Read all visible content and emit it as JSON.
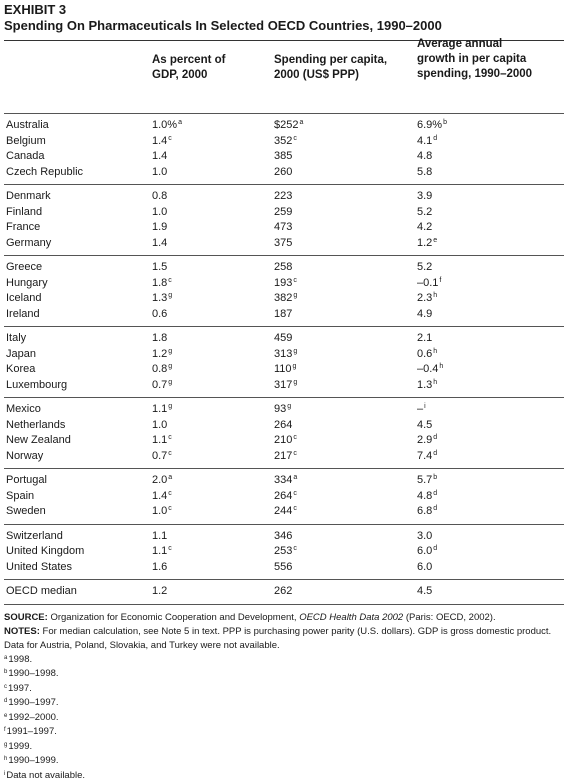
{
  "exhibit": "EXHIBIT 3",
  "title": "Spending On Pharmaceuticals In Selected OECD Countries, 1990–2000",
  "headers": {
    "col1": [
      "As percent of",
      "GDP, 2000"
    ],
    "col2": [
      "Spending per capita,",
      "2000 (US$ PPP)"
    ],
    "col3": [
      "Average annual",
      "growth in per capita",
      "spending, 1990–2000"
    ]
  },
  "groups": [
    [
      {
        "country": "Australia",
        "gdp": "1.0%",
        "gdp_note": "a",
        "spend": "$252",
        "spend_note": "a",
        "growth": "6.9%",
        "growth_note": "b"
      },
      {
        "country": "Belgium",
        "gdp": "1.4",
        "gdp_note": "c",
        "spend": "352",
        "spend_note": "c",
        "growth": "4.1",
        "growth_note": "d"
      },
      {
        "country": "Canada",
        "gdp": "1.4",
        "gdp_note": "",
        "spend": "385",
        "spend_note": "",
        "growth": "4.8",
        "growth_note": ""
      },
      {
        "country": "Czech Republic",
        "gdp": "1.0",
        "gdp_note": "",
        "spend": "260",
        "spend_note": "",
        "growth": "5.8",
        "growth_note": ""
      }
    ],
    [
      {
        "country": "Denmark",
        "gdp": "0.8",
        "gdp_note": "",
        "spend": "223",
        "spend_note": "",
        "growth": "3.9",
        "growth_note": ""
      },
      {
        "country": "Finland",
        "gdp": "1.0",
        "gdp_note": "",
        "spend": "259",
        "spend_note": "",
        "growth": "5.2",
        "growth_note": ""
      },
      {
        "country": "France",
        "gdp": "1.9",
        "gdp_note": "",
        "spend": "473",
        "spend_note": "",
        "growth": "4.2",
        "growth_note": ""
      },
      {
        "country": "Germany",
        "gdp": "1.4",
        "gdp_note": "",
        "spend": "375",
        "spend_note": "",
        "growth": "1.2",
        "growth_note": "e"
      }
    ],
    [
      {
        "country": "Greece",
        "gdp": "1.5",
        "gdp_note": "",
        "spend": "258",
        "spend_note": "",
        "growth": "5.2",
        "growth_note": ""
      },
      {
        "country": "Hungary",
        "gdp": "1.8",
        "gdp_note": "c",
        "spend": "193",
        "spend_note": "c",
        "growth": "–0.1",
        "growth_note": "f"
      },
      {
        "country": "Iceland",
        "gdp": "1.3",
        "gdp_note": "g",
        "spend": "382",
        "spend_note": "g",
        "growth": "2.3",
        "growth_note": "h"
      },
      {
        "country": "Ireland",
        "gdp": "0.6",
        "gdp_note": "",
        "spend": "187",
        "spend_note": "",
        "growth": "4.9",
        "growth_note": ""
      }
    ],
    [
      {
        "country": "Italy",
        "gdp": "1.8",
        "gdp_note": "",
        "spend": "459",
        "spend_note": "",
        "growth": "2.1",
        "growth_note": ""
      },
      {
        "country": "Japan",
        "gdp": "1.2",
        "gdp_note": "g",
        "spend": "313",
        "spend_note": "g",
        "growth": "0.6",
        "growth_note": "h"
      },
      {
        "country": "Korea",
        "gdp": "0.8",
        "gdp_note": "g",
        "spend": "110",
        "spend_note": "g",
        "growth": "–0.4",
        "growth_note": "h"
      },
      {
        "country": "Luxembourg",
        "gdp": "0.7",
        "gdp_note": "g",
        "spend": "317",
        "spend_note": "g",
        "growth": "1.3",
        "growth_note": "h"
      }
    ],
    [
      {
        "country": "Mexico",
        "gdp": "1.1",
        "gdp_note": "g",
        "spend": "93",
        "spend_note": "g",
        "growth": "–",
        "growth_note": "i"
      },
      {
        "country": "Netherlands",
        "gdp": "1.0",
        "gdp_note": "",
        "spend": "264",
        "spend_note": "",
        "growth": "4.5",
        "growth_note": ""
      },
      {
        "country": "New Zealand",
        "gdp": "1.1",
        "gdp_note": "c",
        "spend": "210",
        "spend_note": "c",
        "growth": "2.9",
        "growth_note": "d"
      },
      {
        "country": "Norway",
        "gdp": "0.7",
        "gdp_note": "c",
        "spend": "217",
        "spend_note": "c",
        "growth": "7.4",
        "growth_note": "d"
      }
    ],
    [
      {
        "country": "Portugal",
        "gdp": "2.0",
        "gdp_note": "a",
        "spend": "334",
        "spend_note": "a",
        "growth": "5.7",
        "growth_note": "b"
      },
      {
        "country": "Spain",
        "gdp": "1.4",
        "gdp_note": "c",
        "spend": "264",
        "spend_note": "c",
        "growth": "4.8",
        "growth_note": "d"
      },
      {
        "country": "Sweden",
        "gdp": "1.0",
        "gdp_note": "c",
        "spend": "244",
        "spend_note": "c",
        "growth": "6.8",
        "growth_note": "d"
      }
    ],
    [
      {
        "country": "Switzerland",
        "gdp": "1.1",
        "gdp_note": "",
        "spend": "346",
        "spend_note": "",
        "growth": "3.0",
        "growth_note": ""
      },
      {
        "country": "United Kingdom",
        "gdp": "1.1",
        "gdp_note": "c",
        "spend": "253",
        "spend_note": "c",
        "growth": "6.0",
        "growth_note": "d"
      },
      {
        "country": "United States",
        "gdp": "1.6",
        "gdp_note": "",
        "spend": "556",
        "spend_note": "",
        "growth": "6.0",
        "growth_note": ""
      }
    ],
    [
      {
        "country": "OECD median",
        "gdp": "1.2",
        "gdp_note": "",
        "spend": "262",
        "spend_note": "",
        "growth": "4.5",
        "growth_note": ""
      }
    ]
  ],
  "source": {
    "label": "SOURCE:",
    "pre": " Organization for Economic Cooperation and Development, ",
    "italic": "OECD Health Data 2002",
    "post": " (Paris: OECD, 2002)."
  },
  "notes": {
    "label": "NOTES:",
    "text": " For median calculation, see Note 5 in text. PPP is purchasing power parity (U.S. dollars). GDP is gross domestic product. Data for Austria, Poland, Slovakia, and Turkey were not available."
  },
  "footnotes": [
    {
      "mark": "a",
      "text": "1998."
    },
    {
      "mark": "b",
      "text": "1990–1998."
    },
    {
      "mark": "c",
      "text": "1997."
    },
    {
      "mark": "d",
      "text": "1990–1997."
    },
    {
      "mark": "e",
      "text": "1992–2000."
    },
    {
      "mark": "f",
      "text": "1991–1997."
    },
    {
      "mark": "g",
      "text": "1999."
    },
    {
      "mark": "h",
      "text": "1990–1999."
    },
    {
      "mark": "i",
      "text": "Data not available."
    }
  ]
}
